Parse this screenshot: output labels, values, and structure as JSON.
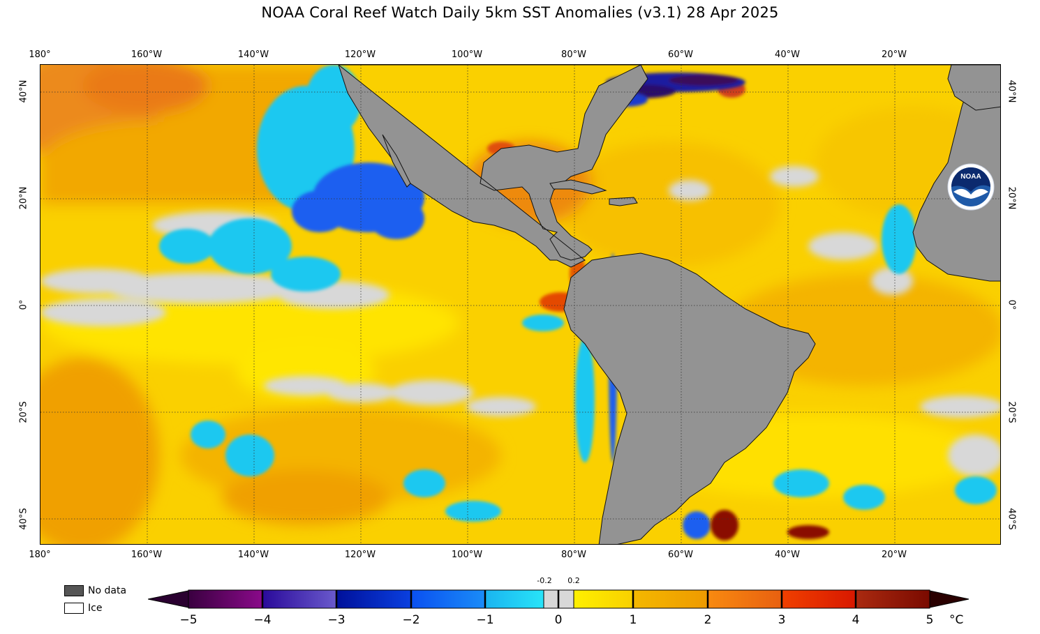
{
  "title": "NOAA Coral Reef Watch Daily 5km SST Anomalies  (v3.1)   28 Apr 2025",
  "longitude_ticks": [
    "180°",
    "160°W",
    "140°W",
    "120°W",
    "100°W",
    "80°W",
    "60°W",
    "40°W",
    "20°W"
  ],
  "latitude_ticks_left": [
    "40°N",
    "20°N",
    "0°",
    "20°S",
    "40°S"
  ],
  "latitude_ticks_right": [
    "40°N",
    "20°N",
    "0°",
    "20°S",
    "40°S"
  ],
  "legend": {
    "no_data": "No data",
    "ice": "Ice"
  },
  "colorbar": {
    "labels": [
      "−5",
      "−4",
      "−3",
      "−2",
      "−1",
      "0",
      "1",
      "2",
      "3",
      "4",
      "5"
    ],
    "small_labels": [
      "-0.2",
      "0.2"
    ],
    "unit": "°C"
  },
  "logo": {
    "text": "NOAA"
  },
  "colors": {
    "land": "#939393",
    "neutral": "#d8d8d8",
    "yellow": "#ffe800",
    "gold": "#f7c800",
    "orange": "#f0a000",
    "deep_orange": "#ea7a10",
    "red": "#e43000",
    "cyan": "#14c8f0",
    "blue": "#1a64f0",
    "navy": "#0c1a9c",
    "purple": "#3a0a5a"
  }
}
